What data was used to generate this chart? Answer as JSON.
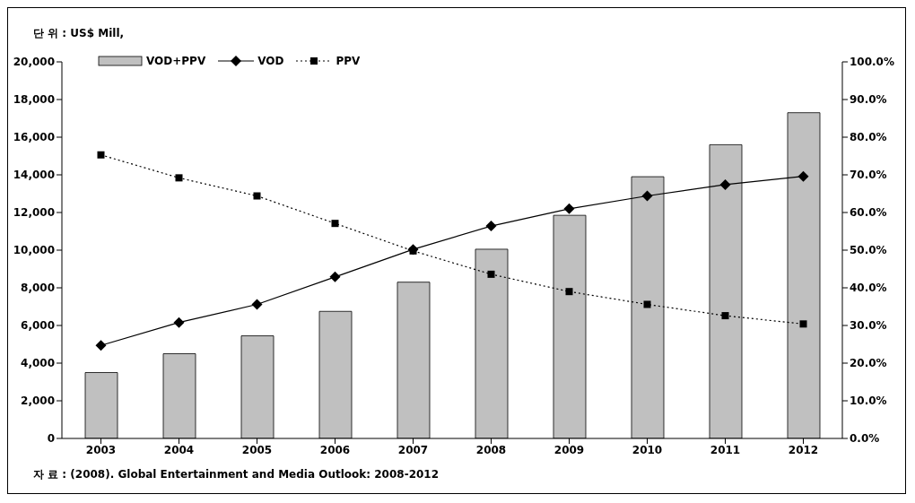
{
  "chart_data": {
    "type": "bar",
    "ylabel": "단 위 : US$ Mill,",
    "annotations": [
      "자 료 : (2008). Global Entertainment and Media Outlook: 2008-2012"
    ],
    "categories": [
      "2003",
      "2004",
      "2005",
      "2006",
      "2007",
      "2008",
      "2009",
      "2010",
      "2011",
      "2012"
    ],
    "series": [
      {
        "name": "VOD+PPV",
        "color": "#c0c0c0",
        "values": [
          3500,
          4500,
          5450,
          6750,
          8300,
          10050,
          11850,
          13900,
          15600,
          17300
        ]
      },
      {
        "name": "VOD",
        "type": "line",
        "axis": "y2",
        "color": "#000000",
        "marker": "diamond",
        "line_style": "solid",
        "values": [
          24.7,
          30.8,
          35.6,
          42.9,
          50.2,
          56.4,
          61.0,
          64.4,
          67.4,
          69.6
        ]
      },
      {
        "name": "PPV",
        "type": "line",
        "axis": "y2",
        "color": "#000000",
        "marker": "square",
        "line_style": "dotted",
        "values": [
          75.3,
          69.2,
          64.4,
          57.1,
          49.8,
          43.6,
          39.0,
          35.6,
          32.6,
          30.4
        ]
      }
    ],
    "ylim": [
      0,
      20000
    ],
    "yticks": [
      {
        "value": 0,
        "label": "0"
      },
      {
        "value": 2000,
        "label": "2,000"
      },
      {
        "value": 4000,
        "label": "4,000"
      },
      {
        "value": 6000,
        "label": "6,000"
      },
      {
        "value": 8000,
        "label": "8,000"
      },
      {
        "value": 10000,
        "label": "10,000"
      },
      {
        "value": 12000,
        "label": "12,000"
      },
      {
        "value": 14000,
        "label": "14,000"
      },
      {
        "value": 16000,
        "label": "16,000"
      },
      {
        "value": 18000,
        "label": "18,000"
      },
      {
        "value": 20000,
        "label": "20,000"
      }
    ],
    "y2lim": [
      0,
      100
    ],
    "y2ticks": [
      {
        "value": 0,
        "label": "0.0%"
      },
      {
        "value": 10,
        "label": "10.0%"
      },
      {
        "value": 20,
        "label": "20.0%"
      },
      {
        "value": 30,
        "label": "30.0%"
      },
      {
        "value": 40,
        "label": "40.0%"
      },
      {
        "value": 50,
        "label": "50.0%"
      },
      {
        "value": 60,
        "label": "60.0%"
      },
      {
        "value": 70,
        "label": "70.0%"
      },
      {
        "value": 80,
        "label": "80.0%"
      },
      {
        "value": 90,
        "label": "90.0%"
      },
      {
        "value": 100,
        "label": "100.0%"
      }
    ],
    "grid": false,
    "legend": "top left"
  }
}
